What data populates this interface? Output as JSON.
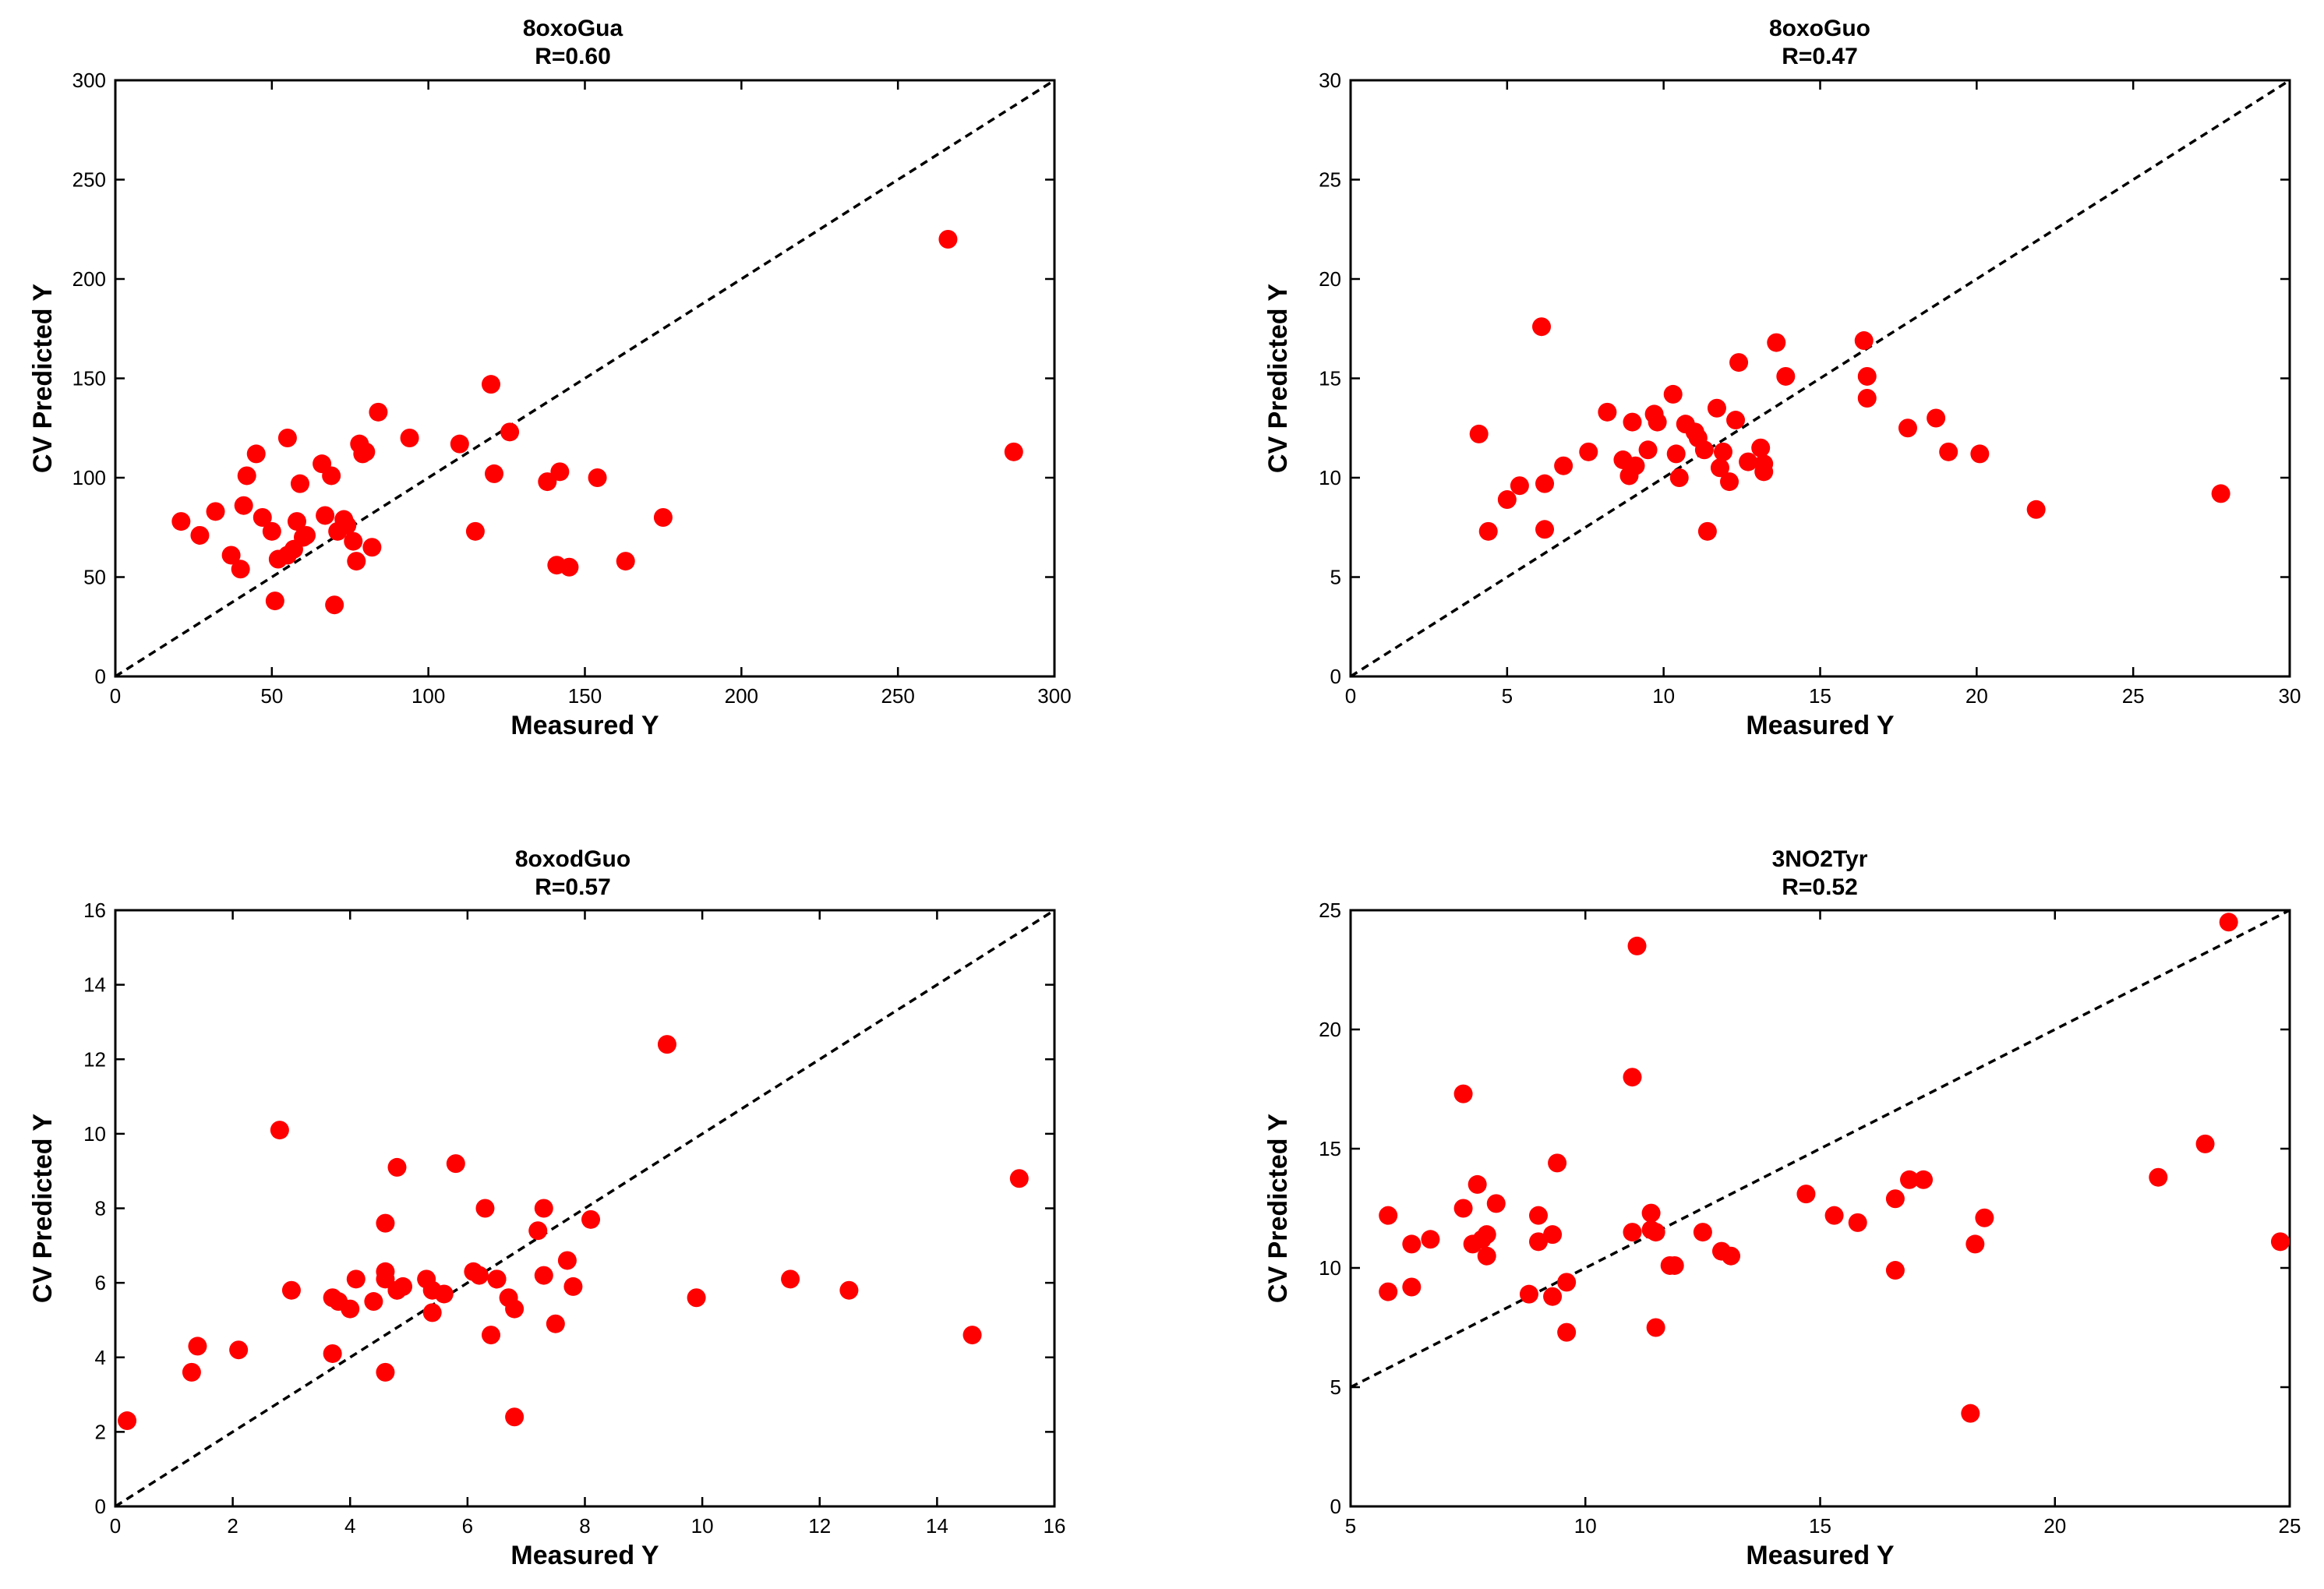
{
  "figure": {
    "xlabel": "Measured Y",
    "ylabel": "CV Predicted Y",
    "marker_color": "#ff0000",
    "line_color": "#000000"
  },
  "chart_data": [
    {
      "type": "scatter",
      "title": "8oxoGua",
      "subtitle": "R=0.60",
      "xlabel": "Measured Y",
      "ylabel": "CV Predicted Y",
      "xlim": [
        0,
        300
      ],
      "ylim": [
        0,
        300
      ],
      "xticks": [
        0,
        50,
        100,
        150,
        200,
        250,
        300
      ],
      "yticks": [
        0,
        50,
        100,
        150,
        200,
        250,
        300
      ],
      "diagonal": [
        [
          0,
          0
        ],
        [
          300,
          300
        ]
      ],
      "x": [
        21,
        27,
        32,
        37,
        40,
        41,
        42,
        45,
        47,
        50,
        51,
        52,
        55,
        55,
        57,
        58,
        59,
        60,
        61,
        66,
        67,
        69,
        70,
        71,
        73,
        74,
        76,
        77,
        78,
        79,
        80,
        82,
        84,
        94,
        110,
        115,
        120,
        121,
        126,
        138,
        141,
        142,
        145,
        154,
        163,
        175,
        266,
        287
      ],
      "y": [
        78,
        71,
        83,
        61,
        54,
        86,
        101,
        112,
        80,
        73,
        38,
        59,
        120,
        61,
        64,
        78,
        97,
        70,
        71,
        107,
        81,
        101,
        36,
        73,
        79,
        76,
        68,
        58,
        117,
        112,
        113,
        65,
        133,
        120,
        117,
        73,
        147,
        102,
        123,
        98,
        56,
        103,
        55,
        100,
        58,
        80,
        220,
        113
      ]
    },
    {
      "type": "scatter",
      "title": "8oxoGuo",
      "subtitle": "R=0.47",
      "xlabel": "Measured Y",
      "ylabel": "CV Predicted Y",
      "xlim": [
        0,
        30
      ],
      "ylim": [
        0,
        30
      ],
      "xticks": [
        0,
        5,
        10,
        15,
        20,
        25,
        30
      ],
      "yticks": [
        0,
        5,
        10,
        15,
        20,
        25,
        30
      ],
      "diagonal": [
        [
          0,
          0
        ],
        [
          30,
          30
        ]
      ],
      "x": [
        4.1,
        4.4,
        5.0,
        5.4,
        6.1,
        6.2,
        6.2,
        6.8,
        7.6,
        8.2,
        8.7,
        8.9,
        9.0,
        9.1,
        9.5,
        9.7,
        9.8,
        10.3,
        10.4,
        10.5,
        10.7,
        11.0,
        11.1,
        11.3,
        11.4,
        11.7,
        11.8,
        11.9,
        12.1,
        12.3,
        12.4,
        12.7,
        13.1,
        13.2,
        13.2,
        13.6,
        13.9,
        16.4,
        16.5,
        16.5,
        17.8,
        18.7,
        19.1,
        20.1,
        21.9,
        27.8
      ],
      "y": [
        12.2,
        7.3,
        8.9,
        9.6,
        17.6,
        9.7,
        7.4,
        10.6,
        11.3,
        13.3,
        10.9,
        10.1,
        12.8,
        10.6,
        11.4,
        13.2,
        12.8,
        14.2,
        11.2,
        10.0,
        12.7,
        12.3,
        12.0,
        11.4,
        7.3,
        13.5,
        10.5,
        11.3,
        9.8,
        12.9,
        15.8,
        10.8,
        11.5,
        10.7,
        10.3,
        16.8,
        15.1,
        16.9,
        15.1,
        14.0,
        12.5,
        13.0,
        11.3,
        11.2,
        8.4,
        9.2
      ]
    },
    {
      "type": "scatter",
      "title": "8oxodGuo",
      "subtitle": "R=0.57",
      "xlabel": "Measured Y",
      "ylabel": "CV Predicted Y",
      "xlim": [
        0,
        16
      ],
      "ylim": [
        0,
        16
      ],
      "xticks": [
        0,
        2,
        4,
        6,
        8,
        10,
        12,
        14,
        16
      ],
      "yticks": [
        0,
        2,
        4,
        6,
        8,
        10,
        12,
        14,
        16
      ],
      "diagonal": [
        [
          0,
          0
        ],
        [
          16,
          16
        ]
      ],
      "x": [
        0.2,
        1.3,
        1.4,
        2.1,
        2.8,
        3.0,
        3.7,
        3.7,
        3.8,
        4.0,
        4.1,
        4.4,
        4.6,
        4.6,
        4.6,
        4.6,
        4.8,
        4.8,
        4.8,
        4.9,
        5.3,
        5.4,
        5.4,
        5.6,
        5.8,
        6.1,
        6.2,
        6.3,
        6.4,
        6.5,
        6.5,
        6.7,
        6.8,
        6.8,
        7.2,
        7.3,
        7.3,
        7.5,
        7.7,
        7.8,
        8.1,
        9.4,
        9.9,
        11.5,
        12.5,
        14.6,
        15.4
      ],
      "y": [
        2.3,
        3.6,
        4.3,
        4.2,
        10.1,
        5.8,
        4.1,
        5.6,
        5.5,
        5.3,
        6.1,
        5.5,
        6.3,
        6.1,
        7.6,
        3.6,
        9.1,
        5.8,
        5.8,
        5.9,
        6.1,
        5.2,
        5.8,
        5.7,
        9.2,
        6.3,
        6.2,
        8.0,
        4.6,
        6.1,
        6.1,
        5.6,
        5.3,
        2.4,
        7.4,
        8.0,
        6.2,
        4.9,
        6.6,
        5.9,
        7.7,
        12.4,
        5.6,
        6.1,
        5.8,
        4.6,
        8.8
      ]
    },
    {
      "type": "scatter",
      "title": "3NO2Tyr",
      "subtitle": "R=0.52",
      "xlabel": "Measured Y",
      "ylabel": "CV Predicted Y",
      "xlim": [
        5,
        25
      ],
      "ylim": [
        0,
        25
      ],
      "xticks": [
        5,
        10,
        15,
        20,
        25
      ],
      "yticks": [
        0,
        5,
        10,
        15,
        20,
        25
      ],
      "diagonal": [
        [
          5,
          5
        ],
        [
          25,
          25
        ]
      ],
      "x": [
        5.8,
        5.8,
        6.3,
        6.3,
        6.7,
        7.4,
        7.4,
        7.6,
        7.7,
        7.8,
        7.9,
        7.9,
        8.1,
        8.8,
        9.0,
        9.0,
        9.3,
        9.3,
        9.4,
        9.6,
        9.6,
        11.0,
        11.0,
        11.1,
        11.4,
        11.4,
        11.5,
        11.5,
        11.8,
        11.9,
        12.5,
        12.9,
        13.1,
        14.7,
        15.3,
        15.8,
        16.6,
        16.6,
        16.9,
        17.2,
        18.2,
        18.3,
        18.5,
        22.2,
        23.2,
        23.7,
        24.8
      ],
      "y": [
        12.2,
        9.0,
        11.0,
        9.2,
        11.2,
        17.3,
        12.5,
        11.0,
        13.5,
        11.2,
        11.4,
        10.5,
        12.7,
        8.9,
        12.2,
        11.1,
        11.4,
        8.8,
        14.4,
        9.4,
        7.3,
        11.5,
        18.0,
        23.5,
        11.6,
        12.3,
        7.5,
        11.5,
        10.1,
        10.1,
        11.5,
        10.7,
        10.5,
        13.1,
        12.2,
        11.9,
        12.9,
        9.9,
        13.7,
        13.7,
        3.9,
        11.0,
        12.1,
        13.8,
        15.2,
        24.5,
        11.1
      ]
    }
  ]
}
